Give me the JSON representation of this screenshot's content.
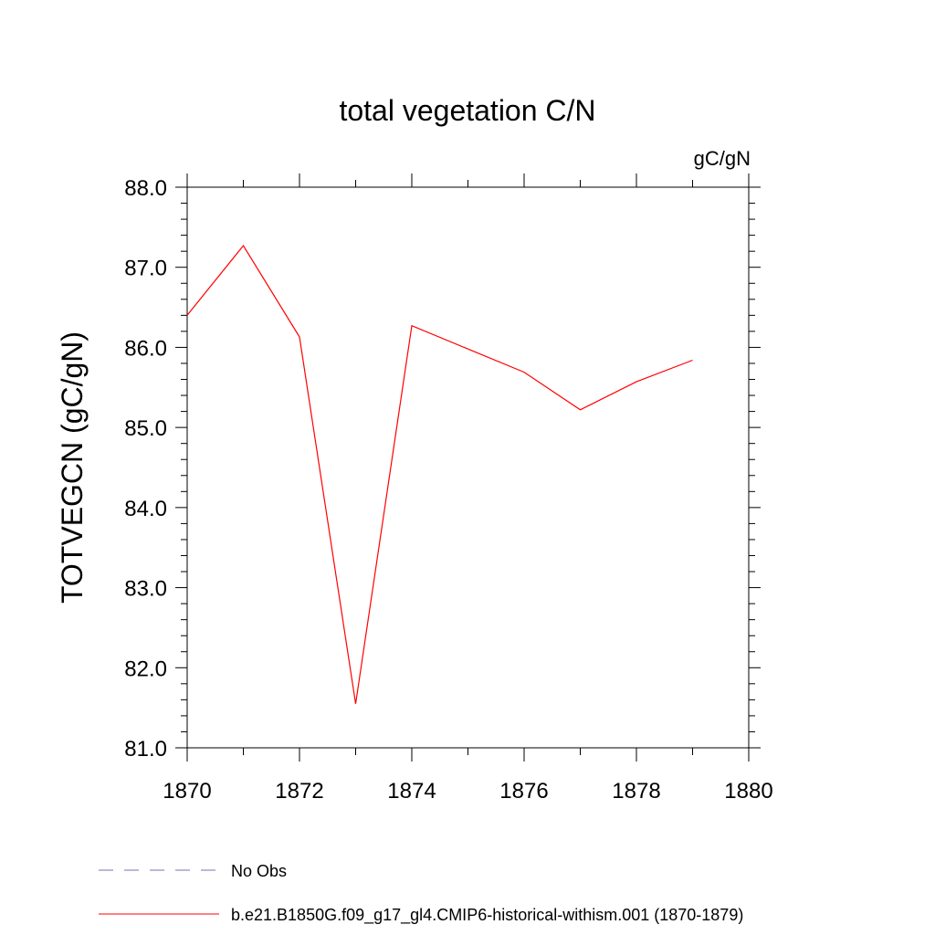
{
  "chart_data": {
    "type": "line",
    "title": "total vegetation C/N",
    "units_label": "gC/gN",
    "ylabel": "TOTVEGCN  (gC/gN)",
    "xlabel": "",
    "xlim": [
      1870,
      1880
    ],
    "ylim": [
      81.0,
      88.0
    ],
    "x_ticks": [
      1870,
      1872,
      1874,
      1876,
      1878,
      1880
    ],
    "x_tick_labels": [
      "1870",
      "1872",
      "1874",
      "1876",
      "1878",
      "1880"
    ],
    "y_ticks": [
      81.0,
      82.0,
      83.0,
      84.0,
      85.0,
      86.0,
      87.0,
      88.0
    ],
    "y_tick_labels": [
      "81.0",
      "82.0",
      "83.0",
      "84.0",
      "85.0",
      "86.0",
      "87.0",
      "88.0"
    ],
    "grid": false,
    "legend_position": "bottom-left, below plot",
    "series": [
      {
        "name": "b.e21.B1850G.f09_g17_gl4.CMIP6-historical-withism.001 (1870-1879)",
        "color": "#ff0000",
        "line_style": "solid",
        "x": [
          1870,
          1871,
          1872,
          1873,
          1874,
          1875,
          1876,
          1877,
          1878,
          1879
        ],
        "y": [
          86.4,
          87.27,
          86.13,
          81.55,
          86.27,
          85.98,
          85.69,
          85.22,
          85.57,
          85.84
        ]
      }
    ],
    "legend": [
      {
        "label": "No Obs",
        "color": "#7b6fb3",
        "line_style": "dashed"
      },
      {
        "label": "b.e21.B1850G.f09_g17_gl4.CMIP6-historical-withism.001 (1870-1879)",
        "color": "#ff0000",
        "line_style": "solid"
      }
    ]
  }
}
